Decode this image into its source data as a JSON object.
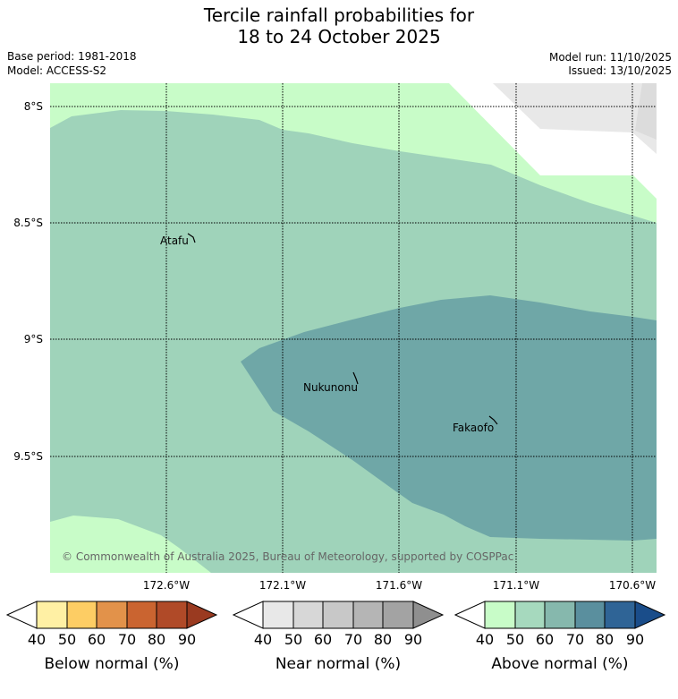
{
  "title": {
    "line1": "Tercile rainfall probabilities for",
    "line2": "18 to 24 October 2025"
  },
  "meta": {
    "base_period": "Base period: 1981-2018",
    "model": "Model: ACCESS-S2",
    "model_run": "Model run: 11/10/2025",
    "issued": "Issued: 13/10/2025"
  },
  "map": {
    "lat_labels": [
      "8°S",
      "8.5°S",
      "9°S",
      "9.5°S"
    ],
    "lon_labels": [
      "172.6°W",
      "172.1°W",
      "171.6°W",
      "171.1°W",
      "170.6°W"
    ],
    "places": [
      {
        "name": "Atafu"
      },
      {
        "name": "Nukunonu"
      },
      {
        "name": "Fakaofo"
      }
    ],
    "copyright": "© Commonwealth of Australia 2025, Bureau of Meteorology, supported by COSPPac"
  },
  "colors": {
    "above_40": "#c8fcc8",
    "above_50": "#9fd3ba",
    "above_60": "#6fa7a7",
    "near_40": "#e8e8e8",
    "near_50": "#dcdcdc"
  },
  "colorbars": [
    {
      "label": "Below normal (%)",
      "ticks": [
        "40",
        "50",
        "60",
        "70",
        "80",
        "90"
      ],
      "colors": [
        "#fff0a4",
        "#fdcd64",
        "#e2924a",
        "#ca6430",
        "#b04a28",
        "#9a3a20"
      ]
    },
    {
      "label": "Near normal (%)",
      "ticks": [
        "40",
        "50",
        "60",
        "70",
        "80",
        "90"
      ],
      "colors": [
        "#e8e8e8",
        "#d7d7d7",
        "#c8c8c8",
        "#b5b5b5",
        "#a3a3a3",
        "#8f8f8f"
      ]
    },
    {
      "label": "Above normal (%)",
      "ticks": [
        "40",
        "50",
        "60",
        "70",
        "80",
        "90"
      ],
      "colors": [
        "#c8fcc8",
        "#a6d9be",
        "#86b8ad",
        "#5a8f9e",
        "#2f6496",
        "#1a4d8a"
      ]
    }
  ]
}
